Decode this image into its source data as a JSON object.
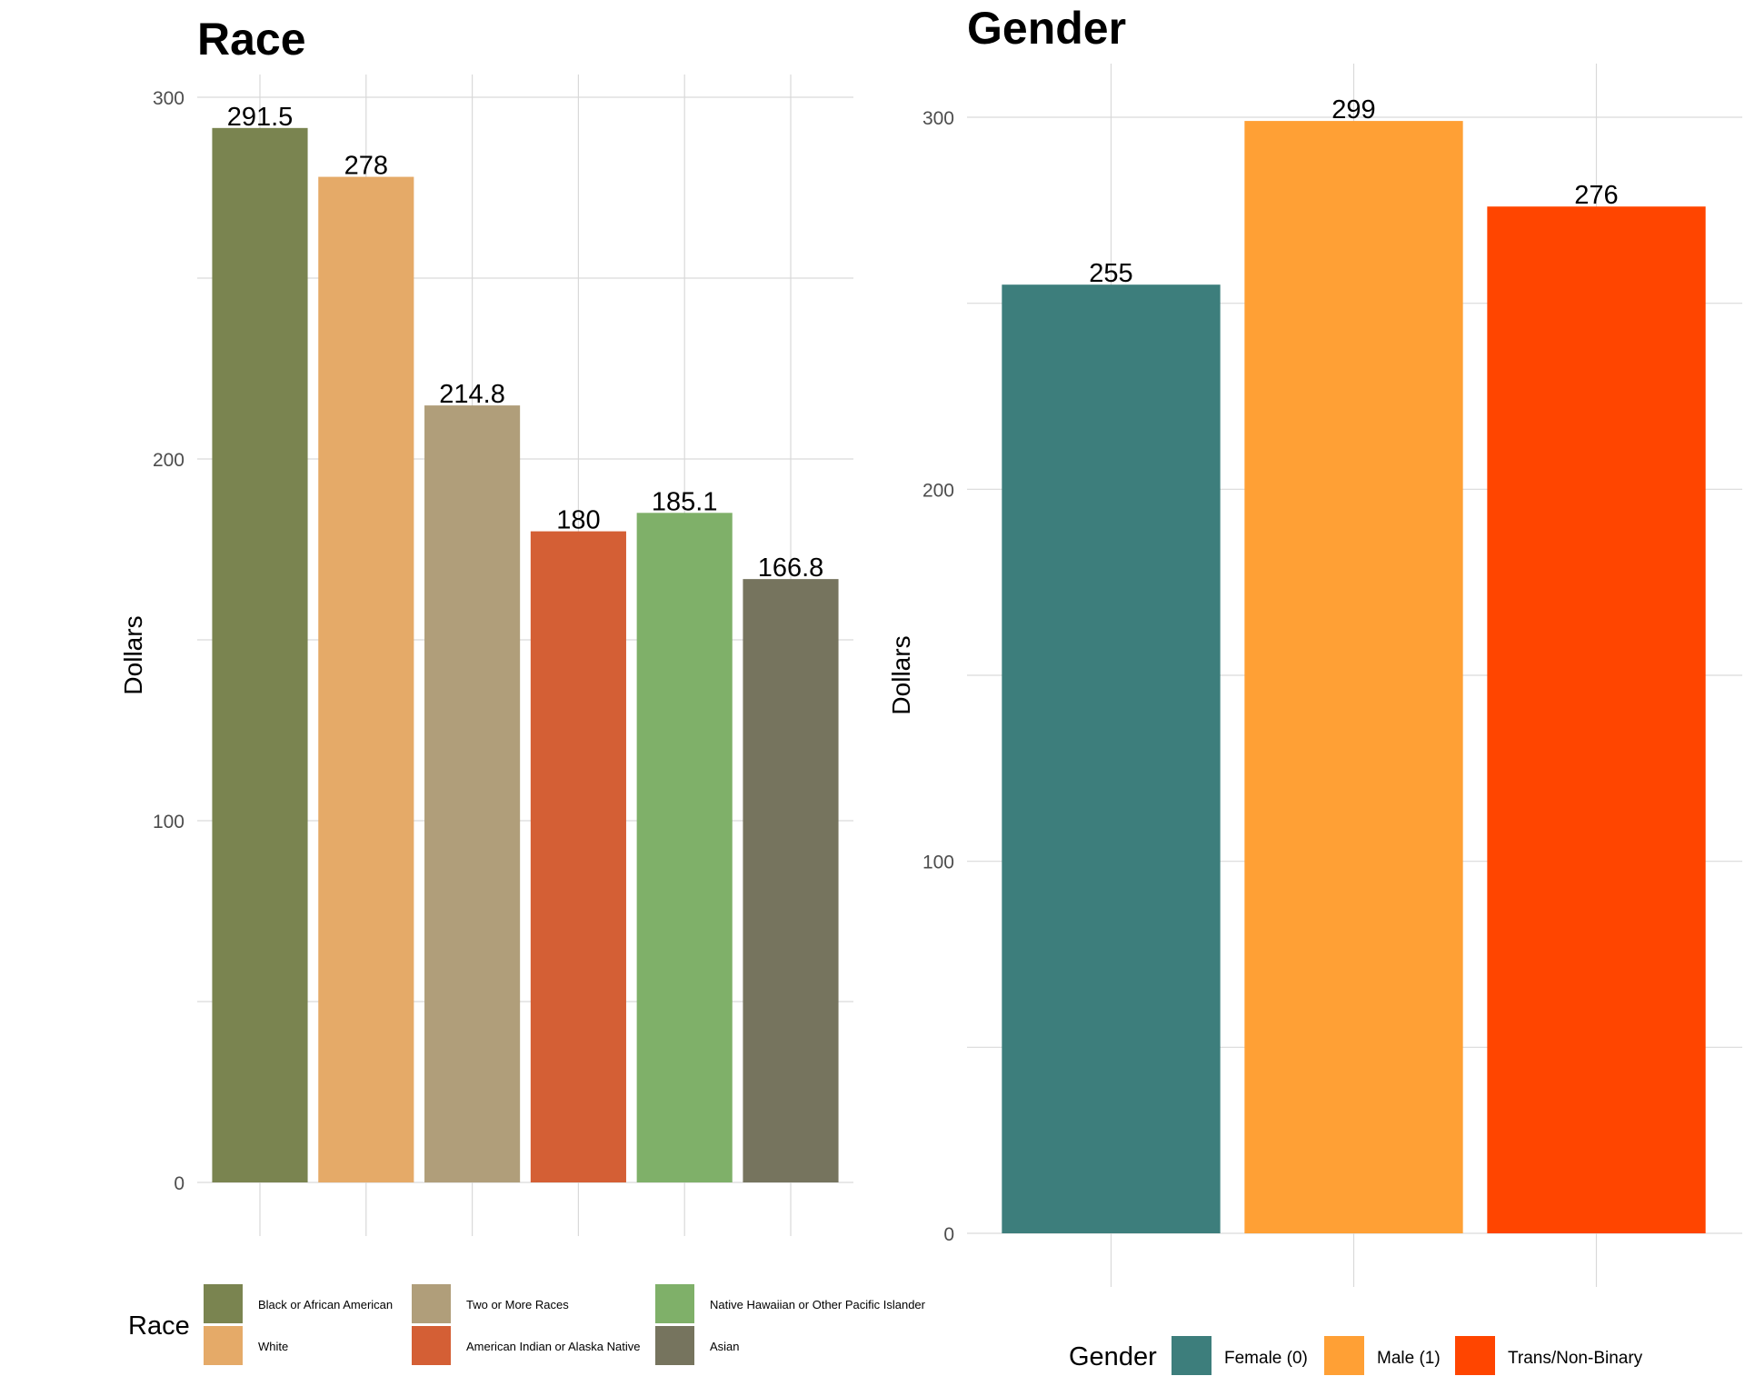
{
  "chart_data": [
    {
      "type": "bar",
      "title": "Race",
      "ylabel": "Dollars",
      "ylim": [
        0,
        300
      ],
      "yticks": [
        0,
        100,
        200,
        300
      ],
      "categories": [
        "Black or African American",
        "White",
        "Two or More Races",
        "American Indian or Alaska Native",
        "Native Hawaiian or Other Pacific Islander",
        "Asian"
      ],
      "values": [
        291.5,
        278,
        214.8,
        180,
        185.1,
        166.8
      ],
      "value_labels": [
        "291.5",
        "278",
        "214.8",
        "180",
        "185.1",
        "166.8"
      ],
      "colors": [
        "#7A8450",
        "#E5AA68",
        "#B09E7A",
        "#D45F35",
        "#7FB069",
        "#76745E"
      ],
      "legend": {
        "title": "Race",
        "placement": "bottom",
        "entries": [
          "Black or African American",
          "White",
          "Two or More Races",
          "American Indian or Alaska Native",
          "Native Hawaiian or Other Pacific Islander",
          "Asian"
        ]
      },
      "grid": true
    },
    {
      "type": "bar",
      "title": "Gender",
      "ylabel": "Dollars",
      "ylim": [
        0,
        300
      ],
      "yticks": [
        0,
        100,
        200,
        300
      ],
      "categories": [
        "Female (0)",
        "Male (1)",
        "Trans/Non-Binary"
      ],
      "values": [
        255,
        299,
        276
      ],
      "value_labels": [
        "255",
        "299",
        "276"
      ],
      "colors": [
        "#3D7E7C",
        "#FFA035",
        "#FF4500"
      ],
      "legend": {
        "title": "Gender",
        "placement": "bottom",
        "entries": [
          "Female (0)",
          "Male (1)",
          "Trans/Non-Binary"
        ]
      },
      "grid": true
    }
  ]
}
